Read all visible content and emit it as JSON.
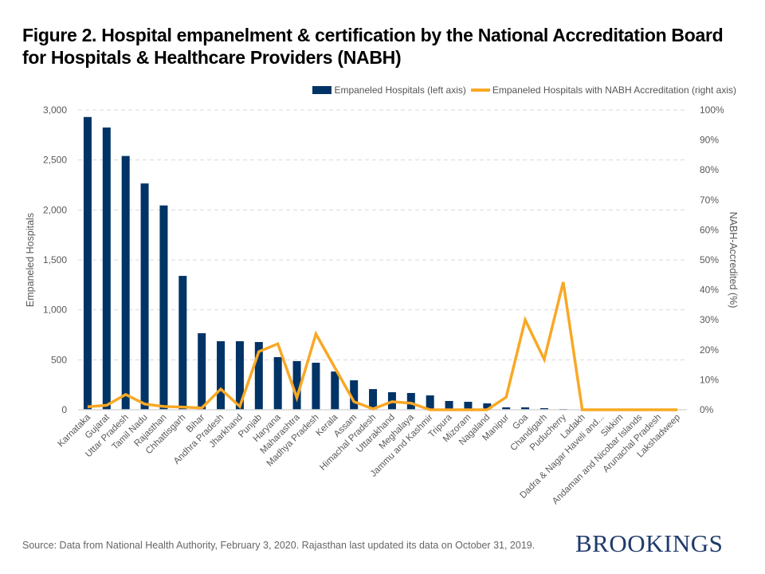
{
  "page": {
    "title": "Figure 2. Hospital empanelment & certification by the National Accreditation Board for Hospitals & Healthcare Providers (NABH)",
    "source": "Source: Data from National Health Authority, February 3, 2020. Rajasthan last updated its data on October 31, 2019.",
    "brand": "BROOKINGS"
  },
  "colors": {
    "bar": "#003366",
    "line": "#f9a825",
    "grid": "#d9d9d9",
    "axis_text": "#595959"
  },
  "chart_data": {
    "type": "bar",
    "title": "Figure 2. Hospital empanelment & certification by the National Accreditation Board for Hospitals & Healthcare Providers (NABH)",
    "xlabel": "",
    "ylabel": "Empaneled Hospitals",
    "y2label": "NABH-Accredited (%)",
    "ylim": [
      0,
      3000
    ],
    "y2lim": [
      0,
      100
    ],
    "yticks": [
      "0",
      "500",
      "1,000",
      "1,500",
      "2,000",
      "2,500",
      "3,000"
    ],
    "y2ticks": [
      "0%",
      "10%",
      "20%",
      "30%",
      "40%",
      "50%",
      "60%",
      "70%",
      "80%",
      "90%",
      "100%"
    ],
    "grid": true,
    "legend_position": "top-right",
    "categories": [
      "Karnataka",
      "Gujarat",
      "Uttar Pradesh",
      "Tamil Nadu",
      "Rajasthan",
      "Chhattisgarh",
      "Bihar",
      "Andhra Pradesh",
      "Jharkhand",
      "Punjab",
      "Haryana",
      "Maharashtra",
      "Madhya Pradesh",
      "Kerala",
      "Assam",
      "Himachal Pradesh",
      "Uttarakhand",
      "Meghalaya",
      "Jammu and Kashmir",
      "Tripura",
      "Mizoram",
      "Nagaland",
      "Manipur",
      "Goa",
      "Chandigarh",
      "Puducherry",
      "Ladakh",
      "Dadra & Nagar Haveli and...",
      "Sikkim",
      "Andaman and Nicobar Islands",
      "Arunachal Pradesh",
      "Lakshadweep"
    ],
    "series": [
      {
        "name": "Empaneled Hospitals (left axis)",
        "type": "bar",
        "axis": "left",
        "values": [
          2930,
          2825,
          2540,
          2265,
          2045,
          1340,
          766,
          686,
          686,
          678,
          527,
          487,
          471,
          383,
          295,
          207,
          176,
          168,
          144,
          88,
          80,
          64,
          24,
          24,
          16,
          8,
          4,
          0,
          0,
          0,
          0,
          4
        ]
      },
      {
        "name": "Empaneled Hospitals with NABH Accreditation (right axis)",
        "type": "line",
        "axis": "right",
        "values": [
          1.0,
          1.5,
          5.1,
          1.9,
          1.1,
          0.9,
          0.6,
          6.9,
          1.1,
          19.4,
          22.0,
          4.0,
          25.3,
          14.0,
          2.7,
          0.3,
          2.7,
          2.2,
          0,
          0,
          0,
          0,
          4.2,
          30.0,
          16.8,
          42.6,
          0,
          0,
          0,
          0,
          0,
          0
        ]
      }
    ]
  }
}
